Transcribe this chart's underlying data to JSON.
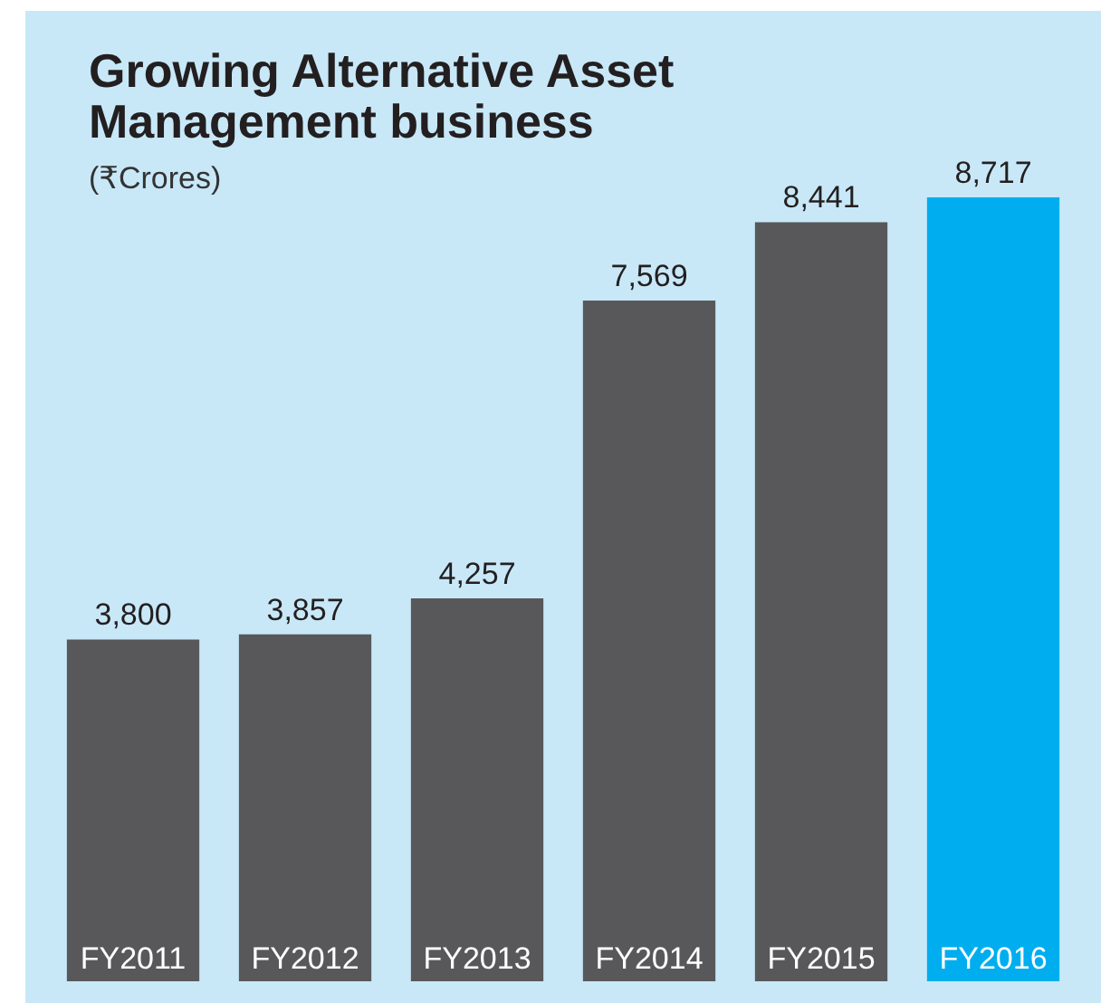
{
  "chart_data": {
    "type": "bar",
    "title": "Growing Alternative Asset Management business",
    "subtitle": "(₹Crores)",
    "categories": [
      "FY2011",
      "FY2012",
      "FY2013",
      "FY2014",
      "FY2015",
      "FY2016"
    ],
    "values": [
      3800,
      3857,
      4257,
      7569,
      8441,
      8717
    ],
    "value_labels": [
      "3,800",
      "3,857",
      "4,257",
      "7,569",
      "8,441",
      "8,717"
    ],
    "colors": [
      "#58585a",
      "#58585a",
      "#58585a",
      "#58585a",
      "#58585a",
      "#00aeef"
    ],
    "tick_labels": "x"
  }
}
